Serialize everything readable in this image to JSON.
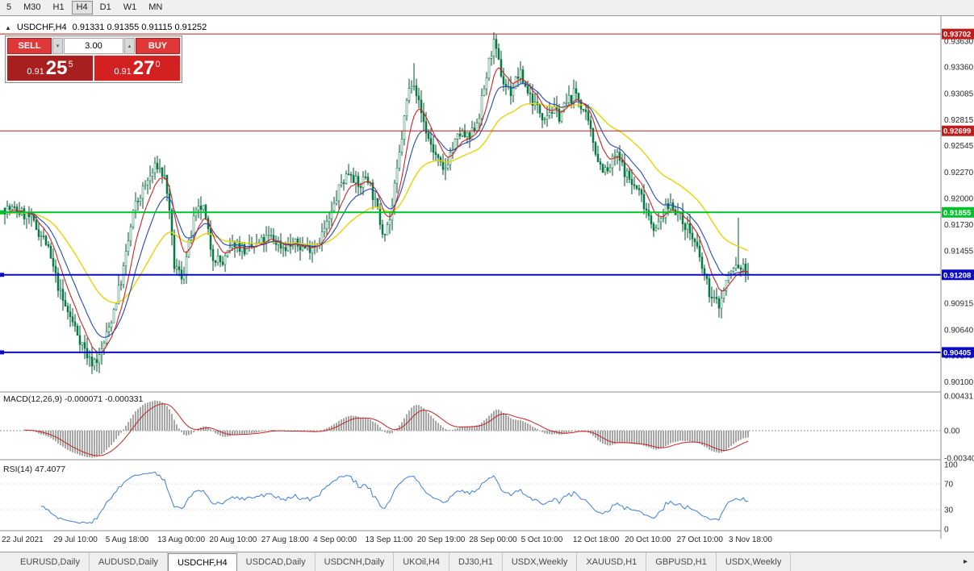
{
  "toolbar": {
    "timeframes": [
      "5",
      "M30",
      "H1",
      "H4",
      "D1",
      "W1",
      "MN"
    ],
    "active": "H4"
  },
  "trade_panel": {
    "sell_label": "SELL",
    "buy_label": "BUY",
    "lot_value": "3.00",
    "lot_up_icon": "▴",
    "lot_down_icon": "▾",
    "sell_price_head": "0.91",
    "sell_price_pips": "25",
    "sell_price_pipette": "5",
    "buy_price_head": "0.91",
    "buy_price_pips": "27",
    "buy_price_pipette": "0"
  },
  "tabs": {
    "items": [
      "EURUSD,Daily",
      "AUDUSD,Daily",
      "USDCHF,H4",
      "USDCAD,Daily",
      "USDCNH,Daily",
      "UKOil,H4",
      "DJ30,H1",
      "USDX,Weekly",
      "XAUUSD,H1",
      "GBPUSD,H1",
      "USDX,Weekly"
    ],
    "active_index": 2,
    "scroll_arrow": "▸"
  },
  "chart_data": {
    "type": "candlestick",
    "symbol_period": "USDCHF,H4",
    "collapse_arrow": "▲",
    "ohlc_display": "0.91331 0.91355 0.91115 0.91252",
    "open": "0.91331",
    "high": "0.91355",
    "low": "0.91115",
    "close": "0.91252",
    "price_range": {
      "top": 0.9382,
      "bottom": 0.9002
    },
    "candle_count": 308,
    "seed": 7,
    "price_axis_ticks": [
      "0.93630",
      "0.93360",
      "0.93085",
      "0.92815",
      "0.92545",
      "0.92270",
      "0.92000",
      "0.91730",
      "0.91455",
      "0.91185",
      "0.90915",
      "0.90640",
      "0.90370",
      "0.90100"
    ],
    "time_axis_ticks": [
      "22 Jul 2021",
      "29 Jul 10:00",
      "5 Aug 18:00",
      "13 Aug 00:00",
      "20 Aug 10:00",
      "27 Aug 18:00",
      "4 Sep 00:00",
      "13 Sep 11:00",
      "20 Sep 19:00",
      "28 Sep 00:00",
      "5 Oct 10:00",
      "12 Oct 18:00",
      "20 Oct 10:00",
      "27 Oct 10:00",
      "3 Nov 18:00"
    ],
    "hlines": [
      {
        "price": 0.93702,
        "label": "0.93702",
        "color": "#c11b1b",
        "width": 1,
        "anchor": false
      },
      {
        "price": 0.92699,
        "label": "0.92699",
        "color": "#c11b1b",
        "width": 1,
        "anchor": false
      },
      {
        "price": 0.91855,
        "label": "0.91855",
        "color": "#00c22b",
        "width": 2,
        "anchor": true
      },
      {
        "price": 0.91208,
        "label": "0.91208",
        "color": "#0c0cc8",
        "width": 2,
        "anchor": true
      },
      {
        "price": 0.90405,
        "label": "0.90405",
        "color": "#0c0cc8",
        "width": 2,
        "anchor": true
      }
    ],
    "close_path": [
      [
        0.0,
        0.919
      ],
      [
        0.017,
        0.9187
      ],
      [
        0.033,
        0.918
      ],
      [
        0.055,
        0.9155
      ],
      [
        0.077,
        0.9095
      ],
      [
        0.098,
        0.906
      ],
      [
        0.115,
        0.903
      ],
      [
        0.127,
        0.9035
      ],
      [
        0.141,
        0.9068
      ],
      [
        0.158,
        0.912
      ],
      [
        0.174,
        0.919
      ],
      [
        0.19,
        0.9215
      ],
      [
        0.205,
        0.9235
      ],
      [
        0.217,
        0.9218
      ],
      [
        0.228,
        0.913
      ],
      [
        0.239,
        0.9118
      ],
      [
        0.255,
        0.918
      ],
      [
        0.266,
        0.9193
      ],
      [
        0.279,
        0.9142
      ],
      [
        0.293,
        0.9132
      ],
      [
        0.309,
        0.9155
      ],
      [
        0.325,
        0.9145
      ],
      [
        0.341,
        0.9152
      ],
      [
        0.357,
        0.916
      ],
      [
        0.374,
        0.915
      ],
      [
        0.39,
        0.9152
      ],
      [
        0.406,
        0.9148
      ],
      [
        0.422,
        0.9156
      ],
      [
        0.438,
        0.918
      ],
      [
        0.452,
        0.9215
      ],
      [
        0.465,
        0.923
      ],
      [
        0.476,
        0.921
      ],
      [
        0.487,
        0.9226
      ],
      [
        0.498,
        0.9196
      ],
      [
        0.509,
        0.9165
      ],
      [
        0.519,
        0.918
      ],
      [
        0.53,
        0.924
      ],
      [
        0.541,
        0.9302
      ],
      [
        0.549,
        0.9328
      ],
      [
        0.557,
        0.9298
      ],
      [
        0.568,
        0.9266
      ],
      [
        0.579,
        0.9245
      ],
      [
        0.59,
        0.9226
      ],
      [
        0.6,
        0.9248
      ],
      [
        0.613,
        0.9268
      ],
      [
        0.625,
        0.926
      ],
      [
        0.638,
        0.9286
      ],
      [
        0.649,
        0.933
      ],
      [
        0.657,
        0.9362
      ],
      [
        0.663,
        0.9344
      ],
      [
        0.671,
        0.932
      ],
      [
        0.681,
        0.931
      ],
      [
        0.692,
        0.933
      ],
      [
        0.703,
        0.9312
      ],
      [
        0.714,
        0.9296
      ],
      [
        0.724,
        0.9286
      ],
      [
        0.735,
        0.9292
      ],
      [
        0.746,
        0.9286
      ],
      [
        0.757,
        0.93
      ],
      [
        0.768,
        0.931
      ],
      [
        0.779,
        0.929
      ],
      [
        0.789,
        0.9266
      ],
      [
        0.8,
        0.9236
      ],
      [
        0.811,
        0.9226
      ],
      [
        0.822,
        0.9246
      ],
      [
        0.833,
        0.923
      ],
      [
        0.843,
        0.9216
      ],
      [
        0.854,
        0.9206
      ],
      [
        0.865,
        0.9186
      ],
      [
        0.876,
        0.9166
      ],
      [
        0.887,
        0.9186
      ],
      [
        0.897,
        0.9196
      ],
      [
        0.908,
        0.918
      ],
      [
        0.919,
        0.917
      ],
      [
        0.93,
        0.915
      ],
      [
        0.941,
        0.912
      ],
      [
        0.951,
        0.9096
      ],
      [
        0.962,
        0.909
      ],
      [
        0.973,
        0.912
      ],
      [
        0.984,
        0.913
      ],
      [
        1.0,
        0.9125
      ]
    ],
    "spikes": [
      {
        "frac": 0.117,
        "low": 0.9018
      },
      {
        "frac": 0.549,
        "high": 0.934
      },
      {
        "frac": 0.657,
        "high": 0.9372
      },
      {
        "frac": 0.988,
        "high": 0.918
      }
    ],
    "indicators": {
      "macd": {
        "label": "MACD(12,26,9) -0.000071 -0.000331",
        "scale_ticks": [
          "0.00431",
          "0.00",
          "-0.00340"
        ]
      },
      "rsi": {
        "label": "RSI(14) 47.4077",
        "scale_ticks": [
          "100",
          "70",
          "30",
          "0"
        ]
      }
    },
    "colors": {
      "candle_up": "#ffffff",
      "candle_down": "#008246",
      "candle_border": "#006e3a",
      "wick": "#00522c",
      "ma_fast": "#d42222",
      "ma_mid": "#2846c8",
      "ma_slow": "#e8d400",
      "macd_hist": "#a6a6a6",
      "macd_signal": "#cc2020",
      "rsi_line": "#3d7edc",
      "axis_text": "#2a2a2a",
      "separator": "#8c8c8c"
    }
  }
}
